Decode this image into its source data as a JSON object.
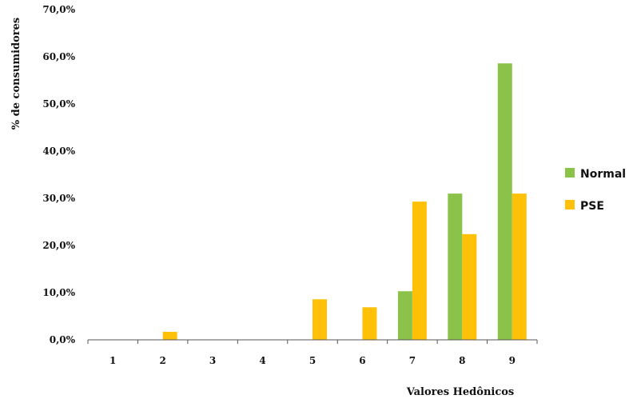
{
  "chart_data": {
    "type": "bar",
    "title": "",
    "xlabel": "Valores Hedônicos",
    "ylabel": "% de consumidores",
    "categories": [
      "1",
      "2",
      "3",
      "4",
      "5",
      "6",
      "7",
      "8",
      "9"
    ],
    "series": [
      {
        "name": "Normal",
        "color": "#8BC34A",
        "values": [
          0.0,
          0.0,
          0.0,
          0.0,
          0.0,
          0.0,
          10.3,
          31.0,
          58.6
        ]
      },
      {
        "name": "PSE",
        "color": "#FFC107",
        "values": [
          0.0,
          1.7,
          0.0,
          0.0,
          8.6,
          6.9,
          29.3,
          22.4,
          31.0
        ]
      }
    ],
    "ylim": [
      0,
      70
    ],
    "yticks": [
      "0,0%",
      "10,0%",
      "20,0%",
      "30,0%",
      "40,0%",
      "50,0%",
      "60,0%",
      "70,0%"
    ],
    "grid": false,
    "legend_position": "right"
  }
}
